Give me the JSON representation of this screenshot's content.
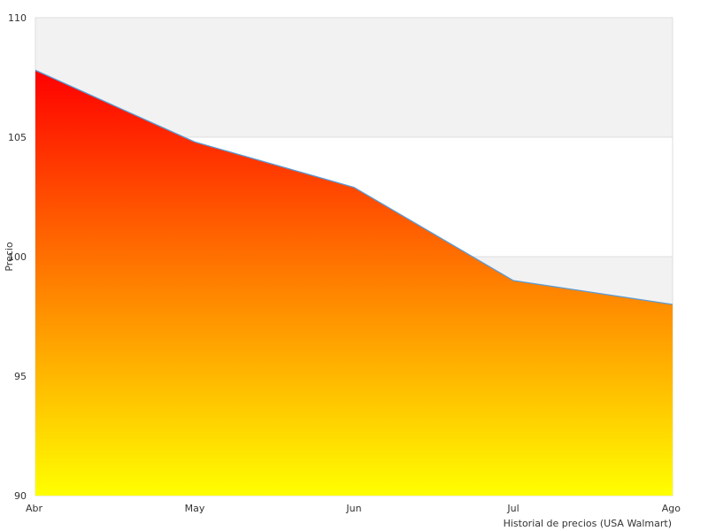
{
  "chart_data": {
    "type": "area",
    "categories": [
      "Abr",
      "May",
      "Jun",
      "Jul",
      "Ago"
    ],
    "values": [
      107.8,
      104.8,
      102.9,
      99.0,
      98.0
    ],
    "ylabel": "Precio",
    "xlabel": "Historial de precios (USA Walmart)",
    "ylim": [
      90,
      110
    ],
    "yticks": [
      "90",
      "95",
      "100",
      "105",
      "110"
    ],
    "grid": "alternating horizontal bands",
    "legend": "none",
    "colors": {
      "fill_top": "#ff0000",
      "fill_bottom": "#ffff00",
      "line": "#5b9bd5",
      "band": "#f2f2f2",
      "border": "#dddddd"
    }
  }
}
